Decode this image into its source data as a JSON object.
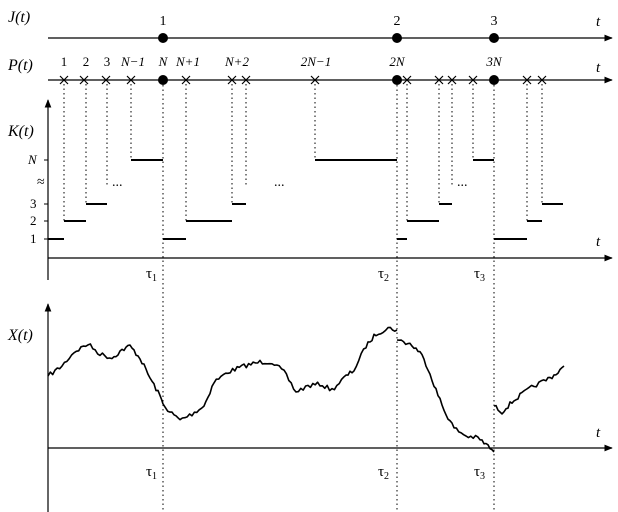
{
  "labels": {
    "j_axis": "J(t)",
    "p_axis": "P(t)",
    "k_axis": "K(t)",
    "x_axis": "X(t)",
    "t": "t",
    "ellipsis": "...",
    "approx": "≈"
  },
  "j_events": [
    "1",
    "2",
    "3"
  ],
  "p_labels": [
    "1",
    "2",
    "3",
    "N−1",
    "N",
    "N+1",
    "N+2",
    "2N−1",
    "2N",
    "3N"
  ],
  "k_ticks": [
    "1",
    "2",
    "3",
    "N"
  ],
  "tau_labels": [
    {
      "base": "τ",
      "sub": "1"
    },
    {
      "base": "τ",
      "sub": "2"
    },
    {
      "base": "τ",
      "sub": "3"
    }
  ],
  "colors": {
    "ink": "#000000",
    "background": "#ffffff"
  }
}
